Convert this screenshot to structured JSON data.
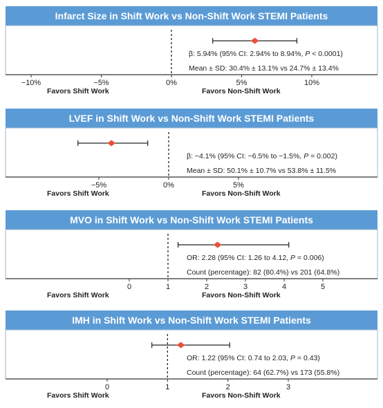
{
  "colors": {
    "header_bg": "#5b9bd5",
    "header_text": "#ffffff",
    "panel_border": "#9fb8cf",
    "marker": "#e8523a",
    "text": "#222222"
  },
  "chart_data": [
    {
      "type": "forest",
      "title": "Infarct Size in Shift Work vs Non-Shift Work STEMI Patients",
      "xlim": [
        -10,
        10
      ],
      "ticks": [
        -10,
        -5,
        0,
        5,
        10
      ],
      "tick_labels": [
        "−10%",
        "−5%",
        "0%",
        "5%",
        "10%"
      ],
      "null_value": 0,
      "estimate": 5.94,
      "ci": [
        2.94,
        8.94
      ],
      "stat_line": "β: 5.94% (95% CI: 2.94% to 8.94%, P < 0.0001)",
      "summary_line": "Mean ± SD: 30.4% ± 13.1% vs 24.7% ± 13.4%",
      "favors_left": "Favors Shift Work",
      "favors_right": "Favors Non-Shift Work"
    },
    {
      "type": "forest",
      "title": "LVEF in Shift Work vs Non-Shift Work STEMI Patients",
      "xlim": [
        -10,
        10
      ],
      "ticks": [
        -5,
        0,
        5
      ],
      "tick_labels": [
        "−5%",
        "0%",
        "5%"
      ],
      "null_value": 0,
      "estimate": -4.1,
      "ci": [
        -6.5,
        -1.5
      ],
      "stat_line": "β: −4.1% (95% CI: −6.5% to −1.5%, P = 0.002)",
      "summary_line": "Mean ± SD: 50.1% ± 10.7% vs 53.8% ± 11.5%",
      "favors_left": "Favors Shift Work",
      "favors_right": "Favors Non-Shift Work"
    },
    {
      "type": "forest",
      "title": "MVO in Shift Work vs Non-Shift Work STEMI Patients",
      "xlim": [
        -1.5,
        6.5
      ],
      "ticks": [
        0,
        1,
        2,
        3,
        4,
        5
      ],
      "tick_labels": [
        "0",
        "1",
        "2",
        "3",
        "4",
        "5"
      ],
      "null_value": 1,
      "estimate": 2.28,
      "ci": [
        1.26,
        4.12
      ],
      "stat_line": "OR: 2.28 (95% CI: 1.26 to 4.12, P = 0.006)",
      "summary_line": "Count (percentage): 82 (80.4%) vs 201 (64.8%)",
      "favors_left": "Favors Shift Work",
      "favors_right": "Favors Non-Shift Work"
    },
    {
      "type": "forest",
      "title": "IMH in Shift Work vs Non-Shift Work STEMI Patients",
      "xlim": [
        -1.0,
        4.0
      ],
      "ticks": [
        0,
        1,
        2,
        3
      ],
      "tick_labels": [
        "0",
        "1",
        "2",
        "3"
      ],
      "null_value": 1,
      "estimate": 1.22,
      "ci": [
        0.74,
        2.03
      ],
      "stat_line": "OR: 1.22 (95% CI: 0.74 to 2.03, P = 0.43)",
      "summary_line": "Count (percentage): 64 (62.7%) vs 173 (55.8%)",
      "favors_left": "Favors Shift Work",
      "favors_right": "Favors Non-Shift Work"
    }
  ]
}
